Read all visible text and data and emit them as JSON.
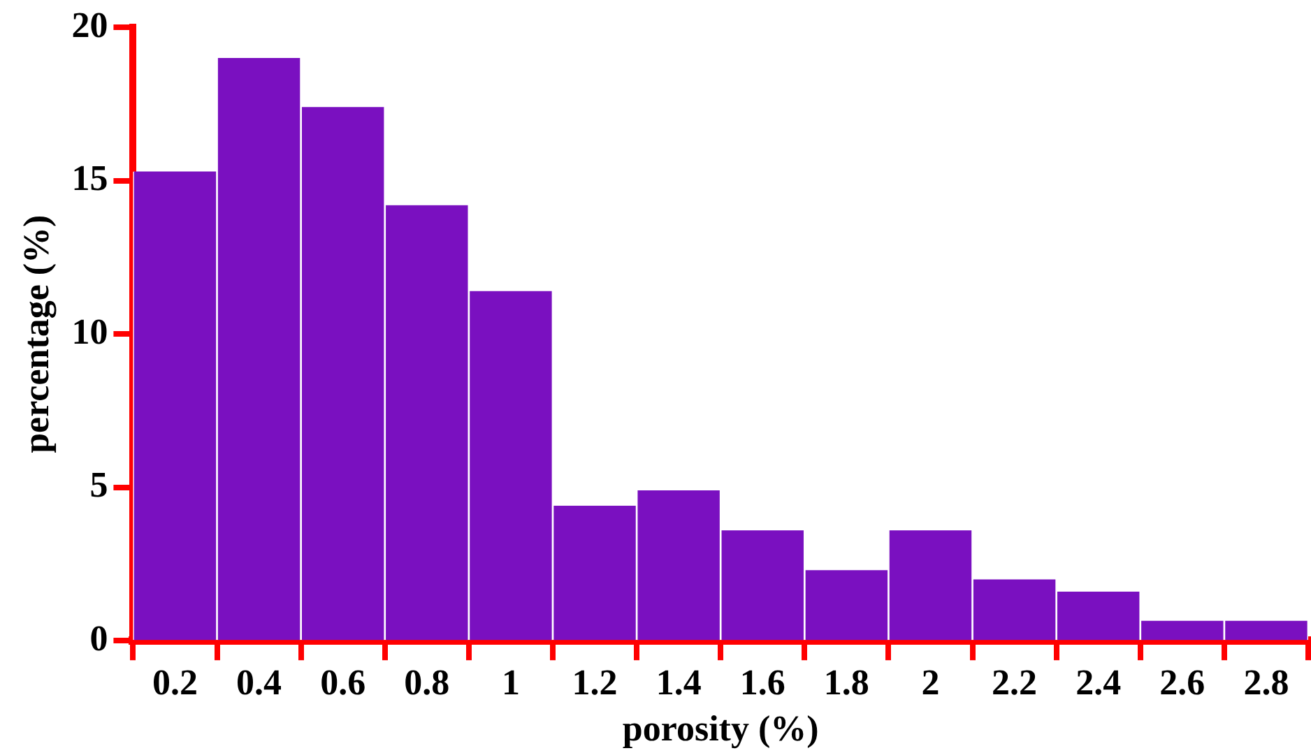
{
  "chart_data": {
    "type": "bar",
    "xlabel": "porosity (%)",
    "ylabel": "percentage (%)",
    "categories": [
      "0.2",
      "0.4",
      "0.6",
      "0.8",
      "1",
      "1.2",
      "1.4",
      "1.6",
      "1.8",
      "2",
      "2.2",
      "2.4",
      "2.6",
      "2.8"
    ],
    "values": [
      15.3,
      19.0,
      17.4,
      14.2,
      11.4,
      4.4,
      4.9,
      3.6,
      2.3,
      3.6,
      2.0,
      1.6,
      0.65,
      0.65
    ],
    "color": "#7a10c0",
    "ylim": [
      0,
      20
    ],
    "yticks": [
      0,
      5,
      10,
      15,
      20
    ],
    "grid": false,
    "legend": false
  }
}
